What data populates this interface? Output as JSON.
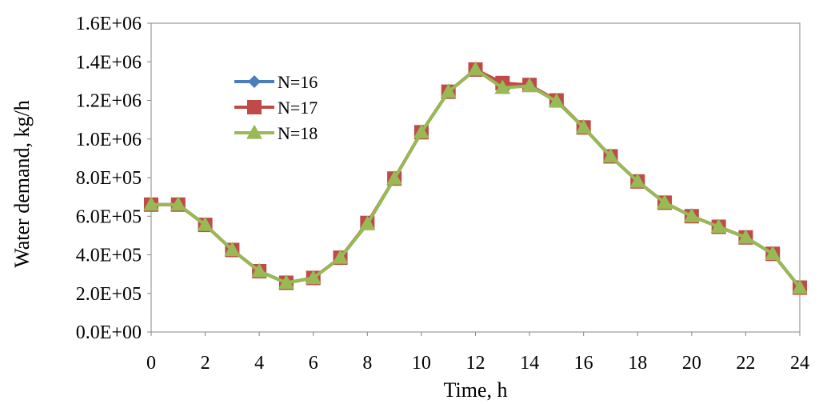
{
  "chart_data": {
    "type": "line",
    "title": "",
    "xlabel": "Time, h",
    "ylabel": "Water demand, kg/h",
    "xlim": [
      0,
      24
    ],
    "ylim": [
      0,
      1600000
    ],
    "x_ticks": [
      "0",
      "2",
      "4",
      "6",
      "8",
      "10",
      "12",
      "14",
      "16",
      "18",
      "20",
      "22",
      "24"
    ],
    "y_ticks": [
      "0.0E+00",
      "2.0E+05",
      "4.0E+05",
      "6.0E+05",
      "8.0E+05",
      "1.0E+06",
      "1.2E+06",
      "1.4E+06",
      "1.6E+06"
    ],
    "grid": false,
    "legend_position": "upper-left",
    "x": [
      0,
      1,
      2,
      3,
      4,
      5,
      6,
      7,
      8,
      9,
      10,
      11,
      12,
      13,
      14,
      15,
      16,
      17,
      18,
      19,
      20,
      21,
      22,
      23,
      24
    ],
    "series": [
      {
        "name": "N=16",
        "color": "#4a7ebb",
        "marker": "diamond",
        "values": [
          660000,
          660000,
          555000,
          425000,
          315000,
          255000,
          280000,
          385000,
          560000,
          795000,
          1035000,
          1245000,
          1360000,
          1270000,
          1275000,
          1195000,
          1060000,
          910000,
          780000,
          670000,
          600000,
          545000,
          490000,
          405000,
          230000
        ]
      },
      {
        "name": "N=17",
        "color": "#be4b48",
        "marker": "square",
        "values": [
          660000,
          660000,
          555000,
          425000,
          315000,
          255000,
          280000,
          385000,
          565000,
          795000,
          1035000,
          1245000,
          1360000,
          1290000,
          1280000,
          1200000,
          1060000,
          910000,
          780000,
          670000,
          600000,
          545000,
          490000,
          405000,
          230000
        ]
      },
      {
        "name": "N=18",
        "color": "#98b954",
        "marker": "triangle",
        "values": [
          660000,
          660000,
          555000,
          425000,
          315000,
          255000,
          280000,
          385000,
          560000,
          795000,
          1035000,
          1245000,
          1360000,
          1265000,
          1275000,
          1195000,
          1060000,
          910000,
          780000,
          670000,
          600000,
          545000,
          490000,
          405000,
          230000
        ]
      }
    ]
  }
}
